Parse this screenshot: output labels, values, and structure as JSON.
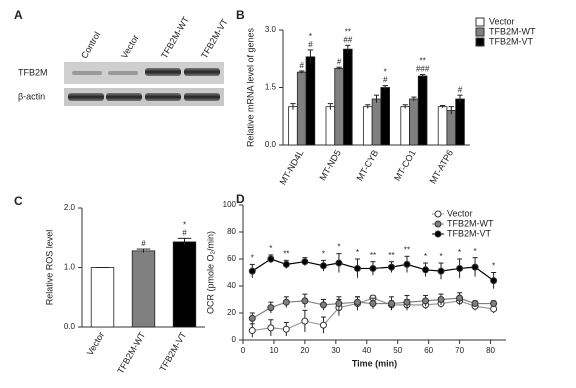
{
  "chart_data": [
    {
      "type": "blot",
      "panel": "A",
      "lanes": [
        "Control",
        "Vector",
        "TFB2M-WT",
        "TFB2M-VT"
      ],
      "rows": [
        "TFB2M",
        "β-actin"
      ]
    },
    {
      "type": "bar",
      "panel": "B",
      "ylabel": "Relative mRNA level of genes",
      "categories": [
        "MT-ND4L",
        "MT-ND5",
        "MT-CYB",
        "MT-CO1",
        "MT-ATP6"
      ],
      "series": [
        {
          "name": "Vector",
          "color": "#ffffff",
          "values": [
            1.0,
            1.0,
            1.0,
            1.0,
            1.0
          ],
          "errors": [
            0.08,
            0.08,
            0.05,
            0.05,
            0.03
          ]
        },
        {
          "name": "TFB2M-WT",
          "color": "#808080",
          "values": [
            1.9,
            2.0,
            1.2,
            1.2,
            0.9
          ],
          "errors": [
            0.03,
            0.03,
            0.1,
            0.05,
            0.1
          ],
          "significance": [
            [
              "#"
            ],
            [
              "#"
            ],
            null,
            null,
            null
          ]
        },
        {
          "name": "TFB2M-VT",
          "color": "#000000",
          "values": [
            2.3,
            2.5,
            1.5,
            1.8,
            1.2
          ],
          "errors": [
            0.18,
            0.1,
            0.05,
            0.04,
            0.1
          ],
          "significance": [
            [
              "*",
              "#"
            ],
            [
              "**",
              "##"
            ],
            [
              "*",
              "#"
            ],
            [
              "**",
              "###"
            ],
            [
              "#"
            ]
          ]
        }
      ],
      "ylim": [
        0,
        3.0
      ],
      "yticks": [
        {
          "value": 0,
          "label": "0.0"
        },
        {
          "value": 1.5,
          "label": "1.5"
        },
        {
          "value": 3.0,
          "label": "3.0"
        }
      ],
      "legend": "upper right"
    },
    {
      "type": "bar",
      "panel": "C",
      "ylabel": "Relative ROS level",
      "categories": [
        "Vector",
        "TFB2M-WT",
        "TFB2M-VT"
      ],
      "values": [
        1.0,
        1.28,
        1.43
      ],
      "errors": [
        0,
        0.03,
        0.06
      ],
      "colors": [
        "#ffffff",
        "#808080",
        "#000000"
      ],
      "significance": [
        null,
        [
          "#"
        ],
        [
          "*",
          "#"
        ]
      ],
      "ylim": [
        0,
        2.0
      ],
      "yticks": [
        {
          "value": 0,
          "label": "0.0"
        },
        {
          "value": 1.0,
          "label": "1.0"
        },
        {
          "value": 2.0,
          "label": "2.0"
        }
      ]
    },
    {
      "type": "line",
      "panel": "D",
      "ylabel": "OCR (pmole O₂/min)",
      "xlabel": "Time (min)",
      "x": [
        3,
        9,
        14,
        20,
        26,
        31,
        37,
        42,
        48,
        53,
        59,
        64,
        70,
        75,
        81
      ],
      "series": [
        {
          "name": "Vector",
          "color": "#ffffff",
          "values": [
            7,
            9,
            8,
            14,
            11,
            24,
            27,
            31,
            26,
            26,
            26,
            27,
            29,
            25,
            23
          ],
          "errors": [
            5,
            6,
            5,
            8,
            6,
            6,
            5,
            2,
            3,
            4,
            3,
            3,
            3,
            3,
            3
          ]
        },
        {
          "name": "TFB2M-WT",
          "color": "#808080",
          "values": [
            16,
            24,
            28,
            29,
            26,
            27,
            28,
            27,
            27,
            28,
            29,
            30,
            31,
            27,
            27
          ],
          "errors": [
            4,
            4,
            4,
            5,
            4,
            5,
            4,
            4,
            5,
            5,
            4,
            4,
            4,
            2,
            2
          ]
        },
        {
          "name": "TFB2M-VT",
          "color": "#000000",
          "values": [
            51,
            60,
            56,
            58,
            55,
            57,
            53,
            53,
            54,
            56,
            52,
            51,
            53,
            54,
            44
          ],
          "errors": [
            5,
            3,
            3,
            3,
            4,
            7,
            7,
            5,
            4,
            6,
            5,
            6,
            7,
            7,
            6
          ]
        }
      ],
      "significance": [
        "*",
        "*",
        "**",
        null,
        "*",
        "*",
        "*",
        "**",
        "**",
        "**",
        "*",
        "*",
        "*",
        "*",
        "*"
      ],
      "xlim": [
        0,
        85
      ],
      "xticks": [
        0,
        10,
        20,
        30,
        40,
        50,
        60,
        70,
        80
      ],
      "ylim": [
        0,
        100
      ],
      "yticks": [
        0,
        20,
        40,
        60,
        80,
        100
      ],
      "legend": "upper right"
    }
  ]
}
